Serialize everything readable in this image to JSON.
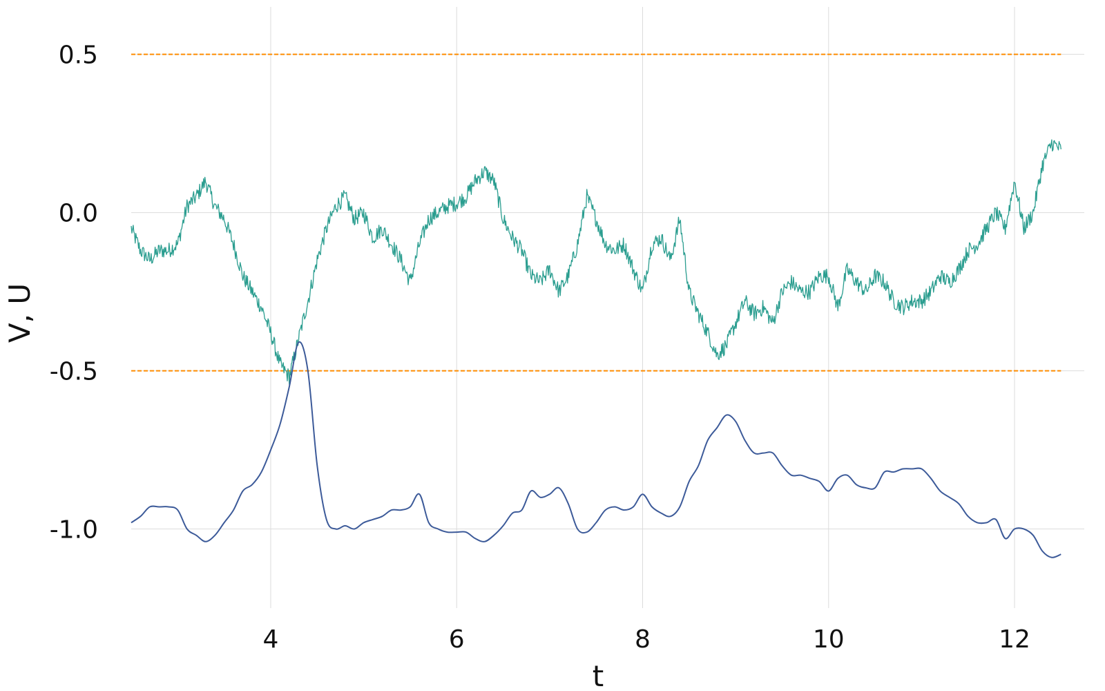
{
  "chart_data": {
    "type": "line",
    "title": "",
    "xlabel": "t",
    "ylabel": "V, U",
    "xlim": [
      2.5,
      12.75
    ],
    "ylim": [
      -1.25,
      0.65
    ],
    "xticks": [
      4,
      6,
      8,
      10,
      12
    ],
    "xtick_labels": [
      "4",
      "6",
      "8",
      "10",
      "12"
    ],
    "yticks": [
      0.5,
      0.0,
      -0.5,
      -1.0
    ],
    "ytick_labels": [
      "0.5",
      "0.0",
      "-0.5",
      "-1.0"
    ],
    "grid": true,
    "legend": "none",
    "thresholds": [
      {
        "y": 0.5,
        "color": "#ff8c00",
        "style": "dashed",
        "x_range": [
          2.5,
          12.5
        ]
      },
      {
        "y": -0.5,
        "color": "#ff8c00",
        "style": "dashed",
        "x_range": [
          2.5,
          12.5
        ]
      }
    ],
    "series": [
      {
        "color": "#2a9d8f",
        "noisy": true,
        "x": [
          2.5,
          2.6,
          2.7,
          2.8,
          2.9,
          3.0,
          3.1,
          3.2,
          3.3,
          3.4,
          3.5,
          3.6,
          3.7,
          3.8,
          3.9,
          4.0,
          4.1,
          4.2,
          4.3,
          4.4,
          4.5,
          4.6,
          4.7,
          4.8,
          4.9,
          5.0,
          5.1,
          5.2,
          5.3,
          5.4,
          5.5,
          5.6,
          5.7,
          5.8,
          5.9,
          6.0,
          6.1,
          6.2,
          6.3,
          6.4,
          6.5,
          6.6,
          6.7,
          6.8,
          6.9,
          7.0,
          7.1,
          7.2,
          7.3,
          7.4,
          7.5,
          7.6,
          7.7,
          7.8,
          7.9,
          8.0,
          8.1,
          8.2,
          8.3,
          8.4,
          8.5,
          8.6,
          8.7,
          8.8,
          8.9,
          9.0,
          9.1,
          9.2,
          9.3,
          9.4,
          9.5,
          9.6,
          9.7,
          9.8,
          9.9,
          10.0,
          10.1,
          10.2,
          10.3,
          10.4,
          10.5,
          10.6,
          10.7,
          10.8,
          10.9,
          11.0,
          11.1,
          11.2,
          11.3,
          11.4,
          11.5,
          11.6,
          11.7,
          11.8,
          11.9,
          12.0,
          12.1,
          12.2,
          12.3,
          12.4,
          12.5
        ],
        "y": [
          -0.05,
          -0.12,
          -0.15,
          -0.12,
          -0.12,
          -0.1,
          0.02,
          0.05,
          0.1,
          0.02,
          -0.02,
          -0.1,
          -0.2,
          -0.25,
          -0.3,
          -0.38,
          -0.48,
          -0.52,
          -0.4,
          -0.28,
          -0.15,
          -0.05,
          0.02,
          0.05,
          -0.02,
          0.0,
          -0.08,
          -0.05,
          -0.1,
          -0.15,
          -0.22,
          -0.1,
          -0.02,
          0.0,
          0.02,
          0.03,
          0.05,
          0.1,
          0.13,
          0.1,
          -0.02,
          -0.08,
          -0.12,
          -0.2,
          -0.22,
          -0.18,
          -0.25,
          -0.2,
          -0.1,
          0.05,
          -0.02,
          -0.1,
          -0.12,
          -0.1,
          -0.18,
          -0.25,
          -0.1,
          -0.08,
          -0.15,
          -0.02,
          -0.25,
          -0.32,
          -0.38,
          -0.45,
          -0.42,
          -0.35,
          -0.28,
          -0.32,
          -0.3,
          -0.35,
          -0.25,
          -0.22,
          -0.25,
          -0.25,
          -0.2,
          -0.2,
          -0.3,
          -0.18,
          -0.22,
          -0.25,
          -0.2,
          -0.22,
          -0.28,
          -0.3,
          -0.28,
          -0.28,
          -0.25,
          -0.2,
          -0.22,
          -0.18,
          -0.12,
          -0.1,
          -0.05,
          0.0,
          -0.05,
          0.1,
          -0.05,
          0.0,
          0.15,
          0.22,
          0.2
        ]
      },
      {
        "color": "#3c5a99",
        "noisy": false,
        "x": [
          2.5,
          2.6,
          2.7,
          2.8,
          2.9,
          3.0,
          3.1,
          3.2,
          3.3,
          3.4,
          3.5,
          3.6,
          3.7,
          3.8,
          3.9,
          4.0,
          4.1,
          4.2,
          4.3,
          4.4,
          4.5,
          4.6,
          4.7,
          4.8,
          4.9,
          5.0,
          5.1,
          5.2,
          5.3,
          5.4,
          5.5,
          5.6,
          5.7,
          5.8,
          5.9,
          6.0,
          6.1,
          6.2,
          6.3,
          6.4,
          6.5,
          6.6,
          6.7,
          6.8,
          6.9,
          7.0,
          7.1,
          7.2,
          7.3,
          7.4,
          7.5,
          7.6,
          7.7,
          7.8,
          7.9,
          8.0,
          8.1,
          8.2,
          8.3,
          8.4,
          8.5,
          8.6,
          8.7,
          8.8,
          8.9,
          9.0,
          9.1,
          9.2,
          9.3,
          9.4,
          9.5,
          9.6,
          9.7,
          9.8,
          9.9,
          10.0,
          10.1,
          10.2,
          10.3,
          10.4,
          10.5,
          10.6,
          10.7,
          10.8,
          10.9,
          11.0,
          11.1,
          11.2,
          11.3,
          11.4,
          11.5,
          11.6,
          11.7,
          11.8,
          11.9,
          12.0,
          12.1,
          12.2,
          12.3,
          12.4,
          12.5
        ],
        "y": [
          -0.98,
          -0.96,
          -0.93,
          -0.93,
          -0.93,
          -0.94,
          -1.0,
          -1.02,
          -1.04,
          -1.02,
          -0.98,
          -0.94,
          -0.88,
          -0.86,
          -0.82,
          -0.75,
          -0.67,
          -0.55,
          -0.41,
          -0.5,
          -0.8,
          -0.97,
          -1.0,
          -0.99,
          -1.0,
          -0.98,
          -0.97,
          -0.96,
          -0.94,
          -0.94,
          -0.93,
          -0.89,
          -0.98,
          -1.0,
          -1.01,
          -1.01,
          -1.01,
          -1.03,
          -1.04,
          -1.02,
          -0.99,
          -0.95,
          -0.94,
          -0.88,
          -0.9,
          -0.89,
          -0.87,
          -0.92,
          -1.0,
          -1.01,
          -0.98,
          -0.94,
          -0.93,
          -0.94,
          -0.93,
          -0.89,
          -0.93,
          -0.95,
          -0.96,
          -0.93,
          -0.85,
          -0.8,
          -0.72,
          -0.68,
          -0.64,
          -0.66,
          -0.72,
          -0.76,
          -0.76,
          -0.76,
          -0.8,
          -0.83,
          -0.83,
          -0.84,
          -0.85,
          -0.88,
          -0.84,
          -0.83,
          -0.86,
          -0.87,
          -0.87,
          -0.82,
          -0.82,
          -0.81,
          -0.81,
          -0.81,
          -0.84,
          -0.88,
          -0.9,
          -0.92,
          -0.96,
          -0.98,
          -0.98,
          -0.97,
          -1.03,
          -1.0,
          -1.0,
          -1.02,
          -1.07,
          -1.09,
          -1.08
        ]
      }
    ]
  }
}
